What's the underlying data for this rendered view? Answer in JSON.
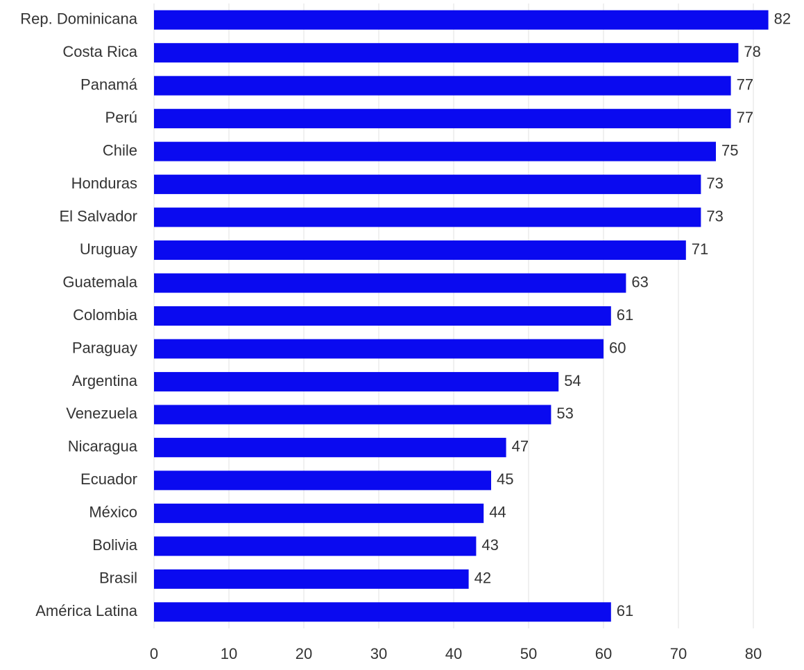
{
  "chart_data": {
    "type": "bar",
    "orientation": "horizontal",
    "categories": [
      "Rep. Dominicana",
      "Costa Rica",
      "Panamá",
      "Perú",
      "Chile",
      "Honduras",
      "El Salvador",
      "Uruguay",
      "Guatemala",
      "Colombia",
      "Paraguay",
      "Argentina",
      "Venezuela",
      "Nicaragua",
      "Ecuador",
      "México",
      "Bolivia",
      "Brasil",
      "América Latina"
    ],
    "values": [
      82,
      78,
      77,
      77,
      75,
      73,
      73,
      71,
      63,
      61,
      60,
      54,
      53,
      47,
      45,
      44,
      43,
      42,
      61
    ],
    "color": "#0a0af0",
    "xlim": [
      0,
      85
    ],
    "xticks": [
      0,
      10,
      20,
      30,
      40,
      50,
      60,
      70,
      80
    ],
    "grid": true
  }
}
